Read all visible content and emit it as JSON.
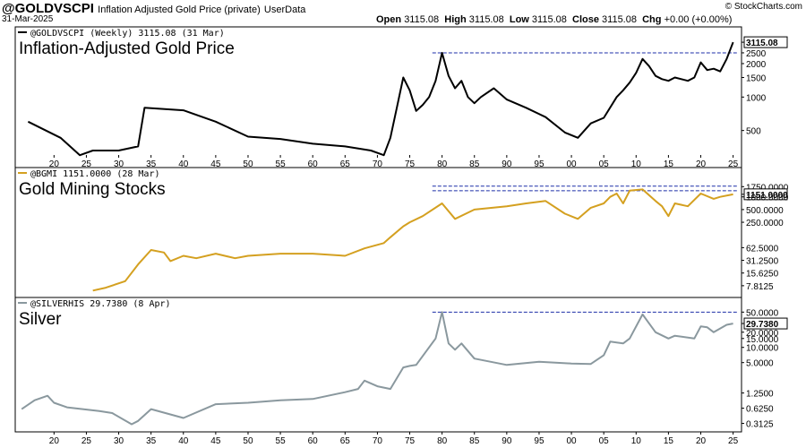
{
  "header": {
    "symbol": "@GOLDVSCPI",
    "subtitle": "Inflation Adjusted Gold Price (private)",
    "userdata": "UserData",
    "date": "31-Mar-2025",
    "copyright": "© StockCharts.com",
    "open_label": "Open",
    "open": "3115.08",
    "high_label": "High",
    "high": "3115.08",
    "low_label": "Low",
    "low": "3115.08",
    "close_label": "Close",
    "close": "3115.08",
    "chg_label": "Chg",
    "chg": "+0.00 (+0.00%)"
  },
  "chart_data": [
    {
      "type": "line",
      "title": "Inflation-Adjusted Gold Price",
      "legend": "@GOLDVSCPI (Weekly) 3115.08 (31 Mar)",
      "color": "#000000",
      "y_scale": "log",
      "ylim": [
        250,
        3300
      ],
      "yticks": [
        "3115.08",
        "2500",
        "2000",
        "1500",
        "1000",
        "500"
      ],
      "last_value_label": "3115.08",
      "reference_line": 2500,
      "x": [
        1916,
        1921,
        1924,
        1926,
        1930,
        1933,
        1934,
        1940,
        1945,
        1950,
        1955,
        1960,
        1965,
        1969,
        1971,
        1972,
        1973,
        1974,
        1975,
        1976,
        1977,
        1978,
        1979,
        1980,
        1981,
        1982,
        1983,
        1984,
        1985,
        1986,
        1988,
        1990,
        1993,
        1996,
        1999,
        2001,
        2003,
        2005,
        2007,
        2008,
        2009,
        2010,
        2011,
        2012,
        2013,
        2014,
        2015,
        2016,
        2018,
        2019,
        2020,
        2021,
        2022,
        2023,
        2024,
        2025
      ],
      "y": [
        600,
        430,
        300,
        330,
        330,
        360,
        800,
        760,
        600,
        440,
        420,
        380,
        360,
        330,
        300,
        430,
        800,
        1500,
        1150,
        750,
        850,
        1000,
        1400,
        2500,
        1550,
        1200,
        1400,
        1000,
        880,
        1000,
        1200,
        950,
        800,
        660,
        480,
        430,
        580,
        650,
        1000,
        1150,
        1350,
        1650,
        2200,
        1900,
        1550,
        1450,
        1400,
        1500,
        1400,
        1500,
        2050,
        1750,
        1800,
        1700,
        2200,
        3115
      ]
    },
    {
      "type": "line",
      "title": "Gold Mining Stocks",
      "legend": "@BGMI 1151.0000 (28 Mar)",
      "color": "#D4A020",
      "y_scale": "log",
      "ylim": [
        5,
        2500
      ],
      "yticks": [
        "1750.0000",
        "1151.0000",
        "1000.0000",
        "500.0000",
        "250.0000",
        "62.5000",
        "31.2500",
        "15.6250",
        "7.8125"
      ],
      "last_value_label": "1151.0000",
      "reference_lines": [
        1800,
        1400
      ],
      "x": [
        1926,
        1928,
        1931,
        1933,
        1935,
        1937,
        1938,
        1940,
        1942,
        1945,
        1948,
        1950,
        1955,
        1960,
        1965,
        1968,
        1971,
        1972,
        1974,
        1975,
        1977,
        1980,
        1982,
        1985,
        1990,
        1993,
        1996,
        1999,
        2001,
        2003,
        2005,
        2006,
        2007,
        2008,
        2009,
        2011,
        2013,
        2014,
        2015,
        2016,
        2018,
        2020,
        2022,
        2023,
        2025
      ],
      "y": [
        6,
        7,
        10,
        25,
        55,
        48,
        30,
        40,
        35,
        45,
        35,
        40,
        45,
        45,
        40,
        60,
        80,
        110,
        200,
        250,
        350,
        700,
        300,
        500,
        600,
        700,
        800,
        400,
        300,
        550,
        700,
        1000,
        1200,
        700,
        1400,
        1500,
        800,
        600,
        350,
        700,
        600,
        1200,
        900,
        1000,
        1151
      ]
    },
    {
      "type": "line",
      "title": "Silver",
      "legend": "@SILVERHIS 29.7380 (8 Apr)",
      "color": "#8A989E",
      "y_scale": "log",
      "ylim": [
        0.25,
        55
      ],
      "yticks": [
        "50.0000",
        "29.7380",
        "20.0000",
        "15.0000",
        "10.0000",
        "5.0000",
        "1.2500",
        "0.6250",
        "0.3125"
      ],
      "last_value_label": "29.7380",
      "reference_line": 50,
      "x": [
        1915,
        1917,
        1919,
        1920,
        1922,
        1927,
        1929,
        1932,
        1933,
        1935,
        1940,
        1945,
        1950,
        1955,
        1960,
        1965,
        1967,
        1968,
        1970,
        1972,
        1974,
        1975,
        1976,
        1979,
        1980,
        1981,
        1982,
        1983,
        1985,
        1990,
        1995,
        2000,
        2003,
        2005,
        2006,
        2008,
        2009,
        2011,
        2012,
        2013,
        2015,
        2016,
        2019,
        2020,
        2021,
        2022,
        2024,
        2025
      ],
      "y": [
        0.6,
        0.9,
        1.1,
        0.8,
        0.65,
        0.55,
        0.5,
        0.3,
        0.35,
        0.6,
        0.4,
        0.75,
        0.8,
        0.9,
        0.95,
        1.3,
        1.5,
        2.2,
        1.7,
        1.5,
        4,
        4.3,
        4.5,
        15,
        50,
        12,
        9,
        12,
        6,
        4.5,
        5.2,
        4.8,
        4.7,
        7,
        13,
        12,
        15,
        45,
        30,
        20,
        15,
        17,
        15,
        26,
        25,
        20,
        28,
        29.7
      ]
    }
  ],
  "x_axis": {
    "top_labels": [
      "20",
      "25",
      "30",
      "35",
      "40",
      "45",
      "50",
      "55",
      "60",
      "65",
      "70",
      "75",
      "80",
      "85",
      "90",
      "95",
      "00",
      "05",
      "10",
      "15",
      "20",
      "25"
    ],
    "bottom_labels": [
      "20",
      "25",
      "30",
      "35",
      "40",
      "45",
      "50",
      "55",
      "60",
      "65",
      "70",
      "75",
      "80",
      "85",
      "90",
      "95",
      "00",
      "05",
      "10",
      "15",
      "20",
      "25"
    ],
    "start_year": 1920,
    "step_years": 5
  }
}
